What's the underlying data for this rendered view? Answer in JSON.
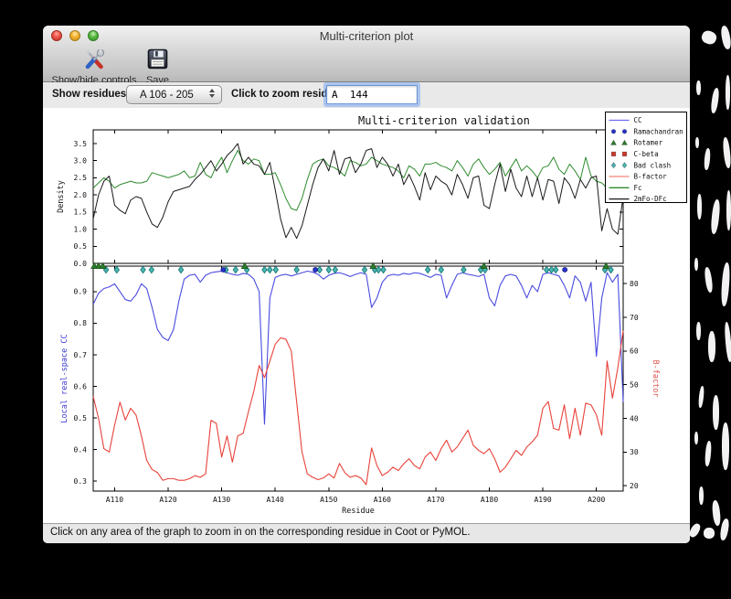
{
  "window": {
    "title": "Multi-criterion plot"
  },
  "toolbar": {
    "show_hide_label": "Show/hide controls",
    "save_label": "Save"
  },
  "controls": {
    "show_residues_label": "Show residues:",
    "residue_range_value": "A 106 - 205",
    "zoom_residue_label": "Click to zoom residue:",
    "zoom_residue_value": "A  144"
  },
  "status_text": "Click on any area of the graph to zoom in on the corresponding residue in Coot or PyMOL.",
  "legend": [
    {
      "label": "CC",
      "sample": "line",
      "color": "#6a6af0"
    },
    {
      "label": "Ramachandran",
      "sample": "circle",
      "color": "#2733cc"
    },
    {
      "label": "Rotamer",
      "sample": "triangle",
      "color": "#2a7e2a"
    },
    {
      "label": "C-beta",
      "sample": "square",
      "color": "#cc372a"
    },
    {
      "label": "Bad clash",
      "sample": "diamond",
      "color": "#49b6b2"
    },
    {
      "label": "B-factor",
      "sample": "line",
      "color": "#f4837a"
    },
    {
      "label": "Fc",
      "sample": "line",
      "color": "#2e8b2e"
    },
    {
      "label": "2mFo-DFc",
      "sample": "line",
      "color": "#1a1a1a"
    }
  ],
  "chart_data": [
    {
      "type": "line",
      "title": "Multi-criterion validation",
      "ylabel": "Density",
      "ylim": [
        0,
        3.9
      ],
      "yticks": [
        0,
        0.5,
        1.0,
        1.5,
        2.0,
        2.5,
        3.0,
        3.5
      ],
      "x_range": [
        106,
        205
      ],
      "grid": false,
      "legend_position": "upper right (outside, overlapping)",
      "series": [
        {
          "name": "Fc",
          "color": "#2e8b2e",
          "values": [
            2.2,
            2.35,
            2.5,
            2.4,
            2.2,
            2.3,
            2.35,
            2.4,
            2.35,
            2.35,
            2.4,
            2.65,
            2.6,
            2.55,
            2.5,
            2.55,
            2.6,
            2.7,
            2.5,
            2.55,
            2.95,
            2.6,
            2.5,
            2.85,
            3.1,
            2.65,
            3.0,
            3.3,
            3.0,
            2.9,
            3.05,
            3.0,
            2.6,
            2.6,
            2.65,
            2.3,
            1.9,
            1.6,
            1.55,
            1.9,
            2.45,
            2.9,
            3.0,
            3.05,
            2.85,
            2.8,
            2.7,
            2.55,
            3.0,
            2.95,
            2.85,
            2.9,
            3.1,
            3.0,
            2.9,
            2.85,
            2.8,
            2.7,
            2.5,
            2.85,
            2.75,
            2.55,
            2.9,
            2.9,
            2.95,
            2.85,
            2.8,
            2.7,
            3.0,
            2.8,
            2.55,
            2.9,
            3.05,
            2.8,
            2.6,
            2.75,
            2.95,
            2.55,
            2.8,
            3.05,
            2.7,
            2.85,
            2.7,
            2.5,
            2.8,
            2.85,
            3.1,
            2.75,
            2.6,
            2.9,
            2.7,
            2.45,
            3.1,
            2.55,
            2.4,
            2.35,
            2.2,
            2.45,
            2.1,
            2.5
          ]
        },
        {
          "name": "2mFo-DFc",
          "color": "#1a1a1a",
          "values": [
            1.3,
            2.0,
            2.4,
            2.55,
            1.7,
            1.55,
            1.45,
            1.85,
            1.95,
            1.9,
            1.5,
            1.15,
            1.05,
            1.35,
            1.8,
            2.1,
            2.15,
            2.2,
            2.25,
            2.45,
            2.6,
            2.8,
            3.0,
            2.7,
            2.9,
            3.15,
            3.3,
            3.5,
            2.9,
            3.1,
            2.9,
            2.85,
            2.6,
            2.95,
            2.15,
            1.3,
            0.75,
            1.05,
            0.73,
            1.1,
            1.7,
            2.3,
            2.8,
            3.05,
            2.7,
            3.3,
            2.6,
            3.05,
            3.1,
            2.65,
            2.9,
            3.3,
            3.35,
            2.8,
            3.1,
            2.9,
            2.55,
            2.9,
            2.3,
            2.6,
            2.25,
            1.85,
            2.65,
            2.15,
            2.55,
            2.4,
            2.3,
            2.0,
            2.6,
            2.3,
            1.9,
            2.5,
            2.55,
            1.7,
            1.6,
            2.3,
            2.9,
            2.1,
            2.75,
            2.2,
            1.95,
            2.55,
            1.95,
            2.5,
            1.85,
            2.45,
            2.4,
            1.75,
            2.5,
            2.3,
            1.9,
            2.45,
            2.2,
            2.5,
            2.55,
            0.95,
            1.6,
            1.0,
            0.85,
            1.95
          ]
        }
      ]
    },
    {
      "type": "line",
      "xlabel": "Residue",
      "x_range": [
        106,
        205
      ],
      "xticks": {
        "values": [
          110,
          120,
          130,
          140,
          150,
          160,
          170,
          180,
          190,
          200
        ],
        "labels": [
          "A110",
          "A120",
          "A130",
          "A140",
          "A150",
          "A160",
          "A170",
          "A180",
          "A190",
          "A200"
        ]
      },
      "left": {
        "label": "Local real-space CC",
        "label_color": "#3a3ad0",
        "ylim": [
          0.268,
          0.981
        ],
        "ticks": [
          0.3,
          0.4,
          0.5,
          0.6,
          0.7,
          0.8,
          0.9
        ]
      },
      "right": {
        "label": "B-factor",
        "label_color": "#e05348",
        "ylim": [
          18.4,
          85.2
        ],
        "ticks": [
          20,
          30,
          40,
          50,
          60,
          70,
          80
        ]
      },
      "series": [
        {
          "name": "CC",
          "axis": "left",
          "color": "#4a4ae0",
          "values": [
            0.86,
            0.895,
            0.91,
            0.915,
            0.925,
            0.9,
            0.875,
            0.87,
            0.89,
            0.925,
            0.91,
            0.85,
            0.78,
            0.755,
            0.745,
            0.78,
            0.87,
            0.94,
            0.952,
            0.955,
            0.93,
            0.952,
            0.96,
            0.963,
            0.965,
            0.96,
            0.955,
            0.952,
            0.958,
            0.955,
            0.94,
            0.9,
            0.48,
            0.88,
            0.945,
            0.952,
            0.955,
            0.95,
            0.955,
            0.96,
            0.965,
            0.962,
            0.955,
            0.94,
            0.952,
            0.958,
            0.96,
            0.955,
            0.948,
            0.955,
            0.96,
            0.955,
            0.85,
            0.88,
            0.93,
            0.95,
            0.955,
            0.952,
            0.958,
            0.955,
            0.96,
            0.958,
            0.952,
            0.945,
            0.955,
            0.952,
            0.88,
            0.92,
            0.955,
            0.96,
            0.955,
            0.952,
            0.948,
            0.955,
            0.88,
            0.855,
            0.92,
            0.95,
            0.955,
            0.95,
            0.92,
            0.88,
            0.92,
            0.9,
            0.955,
            0.96,
            0.955,
            0.95,
            0.92,
            0.88,
            0.95,
            0.93,
            0.87,
            0.93,
            0.695,
            0.88,
            0.96,
            0.93,
            0.955,
            0.55
          ]
        },
        {
          "name": "B-factor",
          "axis": "right",
          "color": "#e8423a",
          "values": [
            46.5,
            40,
            31,
            30,
            38,
            44.8,
            39.5,
            43,
            41,
            34.8,
            27.5,
            24.8,
            23.9,
            21.6,
            22.1,
            22.1,
            21.6,
            21.6,
            22.1,
            23,
            22.5,
            23.5,
            39.4,
            38.5,
            28.5,
            34.8,
            27,
            34.8,
            35.5,
            42,
            48,
            55.7,
            52.1,
            57,
            62,
            63.9,
            63.5,
            60,
            45,
            30,
            23.5,
            22.5,
            21.8,
            22.3,
            23.5,
            22.3,
            26.6,
            23.9,
            22.5,
            23,
            22.3,
            20.3,
            31.2,
            26,
            23,
            24,
            25.5,
            24.5,
            26.5,
            28,
            26,
            25,
            28.5,
            30,
            27.5,
            31,
            33.5,
            30,
            31.5,
            34,
            36.5,
            32,
            30.5,
            29.5,
            31,
            28,
            24,
            25.5,
            28,
            30.5,
            29,
            31.5,
            33,
            35,
            43,
            45,
            37,
            36.5,
            44,
            34,
            43,
            35,
            44.5,
            44,
            41,
            35,
            57,
            46,
            55,
            66
          ]
        }
      ],
      "markers": {
        "marker_y_cc": 0.9695,
        "rotamer": [
          106.2,
          107.0,
          107.8,
          134.3,
          158.3,
          179.0,
          201.8
        ],
        "bad_clash": [
          108.4,
          110.4,
          115.3,
          116.9,
          122.4,
          130.8,
          132.6,
          134.7,
          138.0,
          139.0,
          140.1,
          144.0,
          148.3,
          150.0,
          151.2,
          156.7,
          158.6,
          159.3,
          160.2,
          168.5,
          171.0,
          175.2,
          178.4,
          179.2,
          190.7,
          191.6,
          192.4,
          201.6,
          202.7
        ],
        "ramachandran": [
          130.3,
          147.5,
          194.1
        ],
        "c_beta": []
      }
    }
  ]
}
